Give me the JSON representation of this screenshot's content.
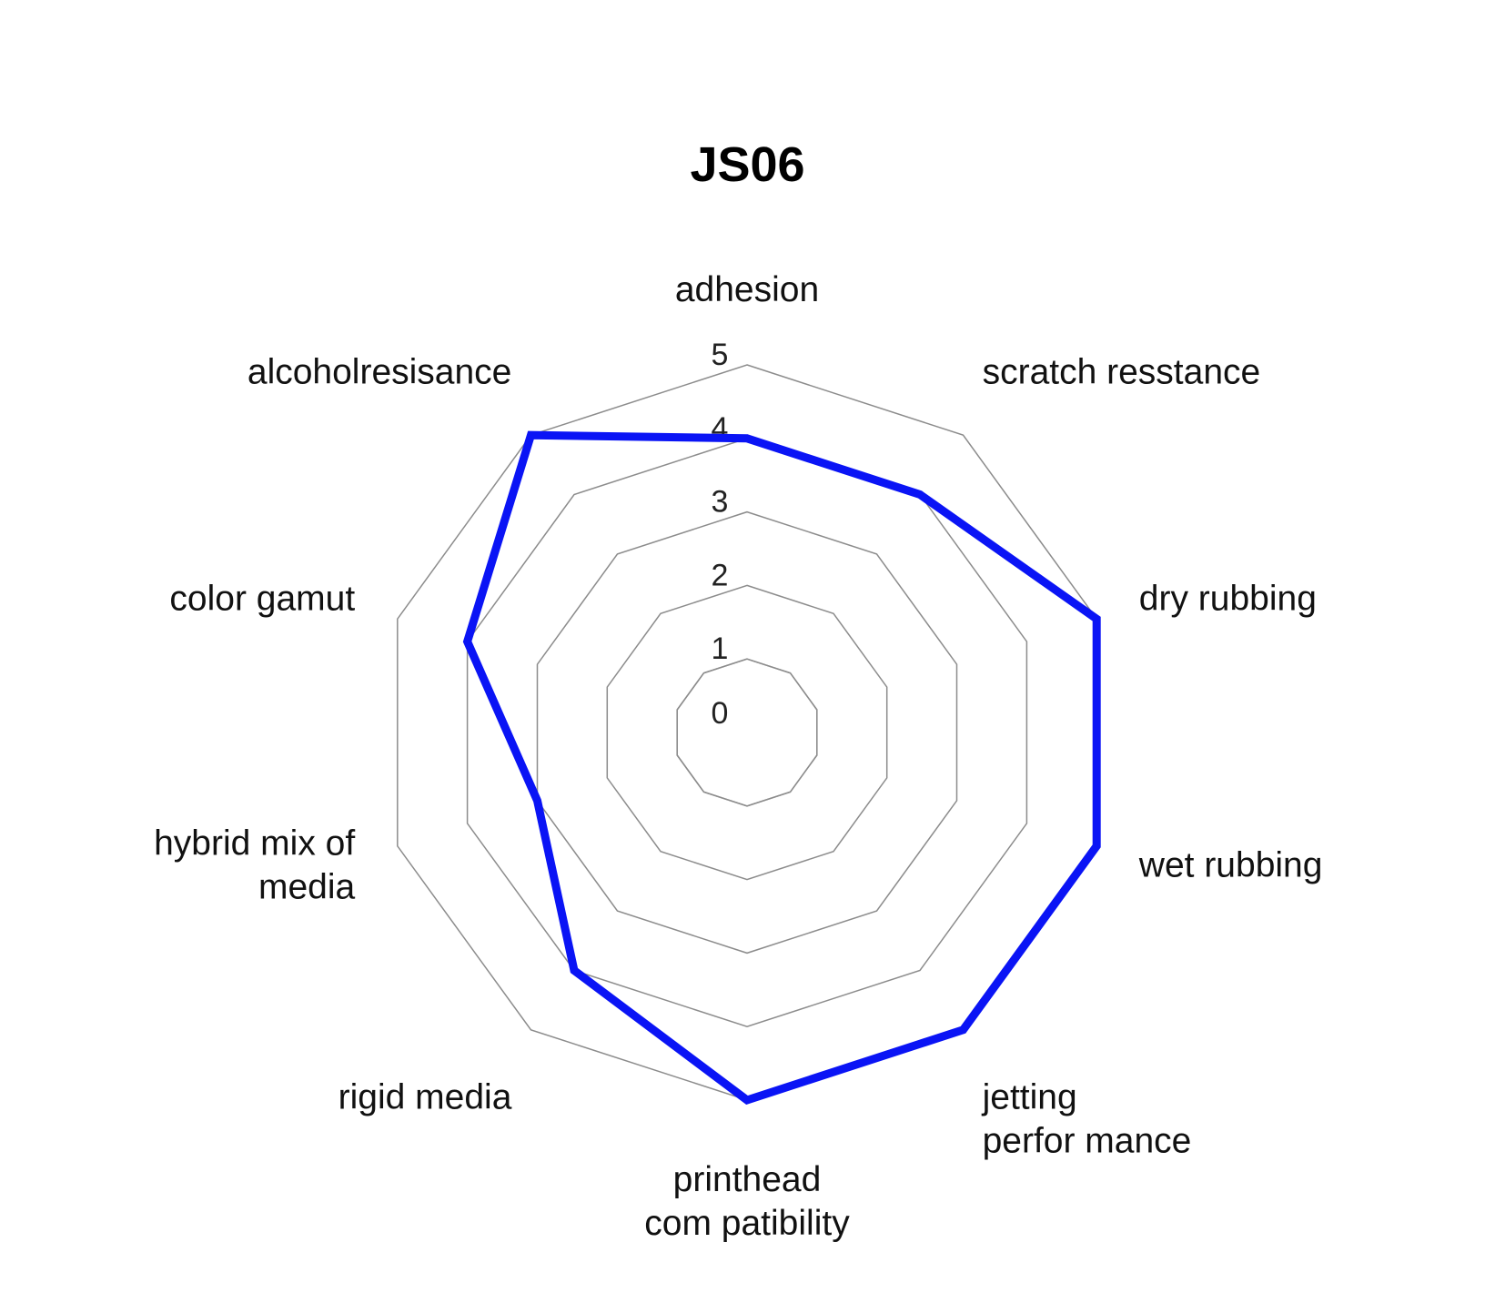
{
  "chart_data": {
    "type": "radar",
    "title": "JS06",
    "axes": [
      {
        "name": "adhesion",
        "lines": [
          "adhesion"
        ]
      },
      {
        "name": "scratch resstance",
        "lines": [
          "scratch resstance"
        ]
      },
      {
        "name": "dry rubbing",
        "lines": [
          "dry rubbing"
        ]
      },
      {
        "name": "wet rubbing",
        "lines": [
          "wet rubbing"
        ]
      },
      {
        "name": "jetting perfor mance",
        "lines": [
          "jetting",
          "perfor mance"
        ]
      },
      {
        "name": "printhead com patibility",
        "lines": [
          "printhead",
          "com patibility"
        ]
      },
      {
        "name": "rigid media",
        "lines": [
          "rigid media"
        ]
      },
      {
        "name": "hybrid mix of media",
        "lines": [
          "hybrid mix of",
          "media"
        ]
      },
      {
        "name": "color gamut",
        "lines": [
          "color gamut"
        ]
      },
      {
        "name": "alcoholresisance",
        "lines": [
          "alcoholresisance"
        ]
      }
    ],
    "ticks": [
      "0",
      "1",
      "2",
      "3",
      "4",
      "5"
    ],
    "range": [
      0,
      5
    ],
    "grid": true,
    "series": [
      {
        "values": [
          4,
          4,
          5,
          5,
          5,
          5,
          4,
          3,
          4,
          5
        ]
      }
    ],
    "colors": {
      "series": "#0a14f5",
      "grid": "#8c8c8c"
    }
  }
}
